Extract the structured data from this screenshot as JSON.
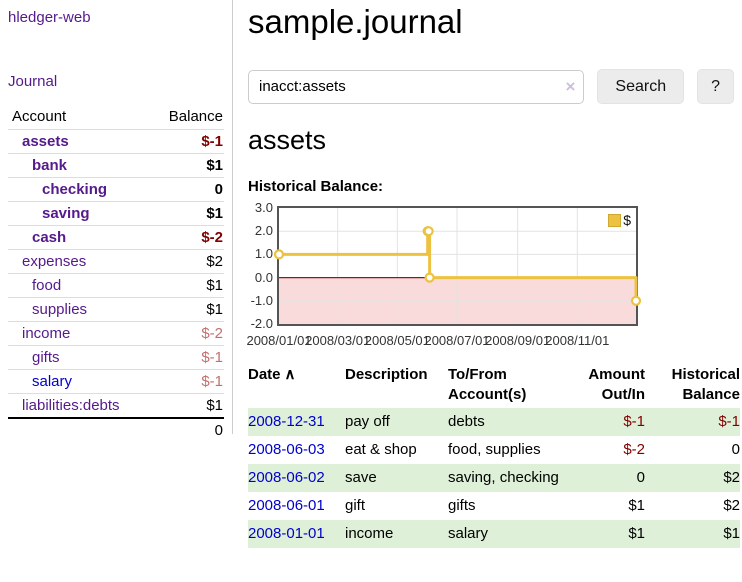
{
  "app": {
    "title": "hledger-web"
  },
  "sidebar": {
    "journal_label": "Journal",
    "accounts": {
      "header_account": "Account",
      "header_balance": "Balance",
      "rows": [
        {
          "name": "assets",
          "depth": 1,
          "bold": true,
          "name_color": "purple",
          "balance": "$-1",
          "balance_color": "neg-strong"
        },
        {
          "name": "bank",
          "depth": 2,
          "bold": true,
          "name_color": "purple",
          "balance": "$1",
          "balance_color": "pos"
        },
        {
          "name": "checking",
          "depth": 3,
          "bold": true,
          "name_color": "purple",
          "balance": "0",
          "balance_color": "pos"
        },
        {
          "name": "saving",
          "depth": 3,
          "bold": true,
          "name_color": "purple",
          "balance": "$1",
          "balance_color": "pos"
        },
        {
          "name": "cash",
          "depth": 2,
          "bold": true,
          "name_color": "purple",
          "balance": "$-2",
          "balance_color": "neg-strong"
        },
        {
          "name": "expenses",
          "depth": 1,
          "bold": false,
          "name_color": "purple",
          "balance": "$2",
          "balance_color": "pos"
        },
        {
          "name": "food",
          "depth": 2,
          "bold": false,
          "name_color": "purple",
          "balance": "$1",
          "balance_color": "pos"
        },
        {
          "name": "supplies",
          "depth": 2,
          "bold": false,
          "name_color": "purple",
          "balance": "$1",
          "balance_color": "pos"
        },
        {
          "name": "income",
          "depth": 1,
          "bold": false,
          "name_color": "purple",
          "balance": "$-2",
          "balance_color": "neg-soft"
        },
        {
          "name": "gifts",
          "depth": 2,
          "bold": false,
          "name_color": "purple",
          "balance": "$-1",
          "balance_color": "neg-soft"
        },
        {
          "name": "salary",
          "depth": 2,
          "bold": false,
          "name_color": "blue",
          "balance": "$-1",
          "balance_color": "neg-soft"
        },
        {
          "name": "liabilities:debts",
          "depth": 1,
          "bold": false,
          "name_color": "purple",
          "balance": "$1",
          "balance_color": "pos"
        }
      ],
      "total": "0"
    }
  },
  "main": {
    "title": "sample.journal",
    "search": {
      "value": "inacct:assets",
      "clear_icon": "×",
      "search_label": "Search",
      "help_label": "?"
    },
    "account_heading": "assets",
    "chart_label": "Historical Balance:"
  },
  "chart_data": {
    "type": "line",
    "step": true,
    "title": "Historical Balance",
    "x": [
      "2008-01-01",
      "2008-06-01",
      "2008-06-02",
      "2008-06-03",
      "2008-12-31"
    ],
    "series": [
      {
        "name": "$",
        "color": "#edc240",
        "values": [
          1,
          2,
          2,
          0,
          -1
        ]
      }
    ],
    "xlim": [
      "2008-01-01",
      "2008-12-31"
    ],
    "ylim": [
      -2,
      3
    ],
    "x_ticks": [
      "2008/01/01",
      "2008/03/01",
      "2008/05/01",
      "2008/07/01",
      "2008/09/01",
      "2008/11/01"
    ],
    "y_ticks": [
      "3.0",
      "2.0",
      "1.0",
      "0.0",
      "-1.0",
      "-2.0"
    ],
    "grid": true,
    "legend": {
      "position": "top-right",
      "label": "$"
    },
    "grid_color": "#e3e3e3",
    "negative_region_fill": "#fadbdb",
    "zero_line_color": "#8b1a1a",
    "marker_fill": "#ffffff"
  },
  "register": {
    "headers": {
      "date": "Date",
      "sort_icon": "∧",
      "description": "Description",
      "accounts": "To/From Account(s)",
      "amount": "Amount Out/In",
      "balance": "Historical Balance"
    },
    "rows": [
      {
        "date": "2008-12-31",
        "description": "pay off",
        "accounts": "debts",
        "amount": "$-1",
        "amount_color": "neg-strong",
        "balance": "$-1",
        "balance_color": "neg-strong"
      },
      {
        "date": "2008-06-03",
        "description": "eat & shop",
        "accounts": "food, supplies",
        "amount": "$-2",
        "amount_color": "neg-strong",
        "balance": "0",
        "balance_color": "pos"
      },
      {
        "date": "2008-06-02",
        "description": "save",
        "accounts": "saving, checking",
        "amount": "0",
        "amount_color": "pos",
        "balance": "$2",
        "balance_color": "pos"
      },
      {
        "date": "2008-06-01",
        "description": "gift",
        "accounts": "gifts",
        "amount": "$1",
        "amount_color": "pos",
        "balance": "$2",
        "balance_color": "pos"
      },
      {
        "date": "2008-01-01",
        "description": "income",
        "accounts": "salary",
        "amount": "$1",
        "amount_color": "pos",
        "balance": "$1",
        "balance_color": "pos"
      }
    ]
  },
  "colors": {
    "accent_purple": "#551a8b",
    "link_blue": "#0000cc",
    "negative_strong": "#800000",
    "negative_soft": "#c36f6f",
    "row_stripe_green": "#dff0d8",
    "chart_line_gold": "#edc240"
  }
}
